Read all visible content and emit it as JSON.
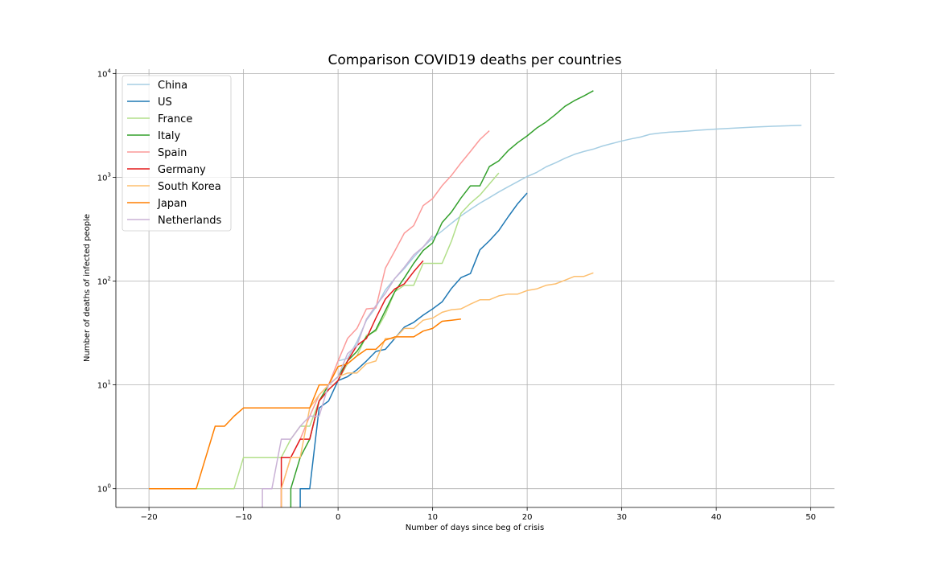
{
  "chart_data": {
    "type": "line",
    "title": "Comparison COVID19 deaths per countries",
    "xlabel": "Number of days since beg of crisis",
    "ylabel": "Number of deaths of infected people",
    "xlim": [
      -23.5,
      52.5
    ],
    "ylim": [
      0.66,
      11000
    ],
    "yscale": "log",
    "grid": true,
    "legend_position": "upper-left",
    "x_ticks": [
      -20,
      -10,
      0,
      10,
      20,
      30,
      40,
      50
    ],
    "x_tick_labels": [
      "−20",
      "−10",
      "0",
      "10",
      "20",
      "30",
      "40",
      "50"
    ],
    "y_ticks": [
      1,
      10,
      100,
      1000,
      10000
    ],
    "y_tick_labels": [
      {
        "base": "10",
        "exp": "0"
      },
      {
        "base": "10",
        "exp": "1"
      },
      {
        "base": "10",
        "exp": "2"
      },
      {
        "base": "10",
        "exp": "3"
      },
      {
        "base": "10",
        "exp": "4"
      }
    ],
    "series": [
      {
        "name": "China",
        "color": "#a6cee3",
        "points": [
          [
            0,
            17
          ],
          [
            1,
            18
          ],
          [
            2,
            26
          ],
          [
            3,
            42
          ],
          [
            4,
            56
          ],
          [
            5,
            82
          ],
          [
            6,
            106
          ],
          [
            7,
            132
          ],
          [
            8,
            170
          ],
          [
            9,
            213
          ],
          [
            10,
            259
          ],
          [
            11,
            304
          ],
          [
            12,
            361
          ],
          [
            13,
            425
          ],
          [
            14,
            490
          ],
          [
            15,
            563
          ],
          [
            16,
            636
          ],
          [
            17,
            722
          ],
          [
            18,
            811
          ],
          [
            19,
            908
          ],
          [
            20,
            1016
          ],
          [
            21,
            1113
          ],
          [
            22,
            1259
          ],
          [
            23,
            1380
          ],
          [
            24,
            1523
          ],
          [
            25,
            1665
          ],
          [
            26,
            1770
          ],
          [
            27,
            1868
          ],
          [
            28,
            2004
          ],
          [
            29,
            2118
          ],
          [
            30,
            2236
          ],
          [
            31,
            2345
          ],
          [
            32,
            2442
          ],
          [
            33,
            2592
          ],
          [
            34,
            2663
          ],
          [
            35,
            2715
          ],
          [
            36,
            2744
          ],
          [
            37,
            2788
          ],
          [
            38,
            2835
          ],
          [
            39,
            2870
          ],
          [
            40,
            2912
          ],
          [
            41,
            2946
          ],
          [
            42,
            2981
          ],
          [
            43,
            3013
          ],
          [
            44,
            3045
          ],
          [
            45,
            3073
          ],
          [
            46,
            3099
          ],
          [
            47,
            3123
          ],
          [
            48,
            3140
          ],
          [
            49,
            3162
          ]
        ]
      },
      {
        "name": "US",
        "color": "#1f78b4",
        "points": [
          [
            -4,
            0.5
          ],
          [
            -4,
            1
          ],
          [
            -3,
            1
          ],
          [
            -2,
            6
          ],
          [
            -1,
            7
          ],
          [
            0,
            11
          ],
          [
            1,
            12
          ],
          [
            2,
            14
          ],
          [
            3,
            17
          ],
          [
            4,
            21
          ],
          [
            5,
            22
          ],
          [
            6,
            28
          ],
          [
            7,
            36
          ],
          [
            8,
            40
          ],
          [
            9,
            47
          ],
          [
            10,
            54
          ],
          [
            11,
            63
          ],
          [
            12,
            85
          ],
          [
            13,
            108
          ],
          [
            14,
            118
          ],
          [
            15,
            200
          ],
          [
            16,
            244
          ],
          [
            17,
            307
          ],
          [
            18,
            417
          ],
          [
            19,
            557
          ],
          [
            20,
            706
          ]
        ]
      },
      {
        "name": "France",
        "color": "#b2df8a",
        "points": [
          [
            -15,
            1
          ],
          [
            -11,
            1
          ],
          [
            -10,
            2
          ],
          [
            -6,
            2
          ],
          [
            -5,
            3
          ],
          [
            -4,
            4
          ],
          [
            -3,
            4
          ],
          [
            -2,
            7
          ],
          [
            -1,
            9
          ],
          [
            0,
            11
          ],
          [
            1,
            16
          ],
          [
            2,
            19
          ],
          [
            3,
            30
          ],
          [
            4,
            33
          ],
          [
            5,
            48
          ],
          [
            6,
            79
          ],
          [
            7,
            91
          ],
          [
            8,
            91
          ],
          [
            9,
            148
          ],
          [
            10,
            148
          ],
          [
            11,
            148
          ],
          [
            12,
            243
          ],
          [
            13,
            450
          ],
          [
            14,
            562
          ],
          [
            15,
            674
          ],
          [
            16,
            860
          ],
          [
            17,
            1100
          ]
        ]
      },
      {
        "name": "Italy",
        "color": "#33a02c",
        "points": [
          [
            -5,
            0.5
          ],
          [
            -5,
            1
          ],
          [
            -4,
            2
          ],
          [
            -3,
            3
          ],
          [
            -2,
            7
          ],
          [
            -1,
            10
          ],
          [
            0,
            12
          ],
          [
            1,
            17
          ],
          [
            2,
            21
          ],
          [
            3,
            29
          ],
          [
            4,
            34
          ],
          [
            5,
            52
          ],
          [
            6,
            79
          ],
          [
            7,
            107
          ],
          [
            8,
            148
          ],
          [
            9,
            197
          ],
          [
            10,
            233
          ],
          [
            11,
            366
          ],
          [
            12,
            463
          ],
          [
            13,
            631
          ],
          [
            14,
            827
          ],
          [
            15,
            827
          ],
          [
            16,
            1266
          ],
          [
            17,
            1441
          ],
          [
            18,
            1809
          ],
          [
            19,
            2158
          ],
          [
            20,
            2503
          ],
          [
            21,
            2978
          ],
          [
            22,
            3405
          ],
          [
            23,
            4032
          ],
          [
            24,
            4825
          ],
          [
            25,
            5476
          ],
          [
            26,
            6077
          ],
          [
            27,
            6820
          ]
        ]
      },
      {
        "name": "Spain",
        "color": "#fb9a99",
        "points": [
          [
            -6,
            0.5
          ],
          [
            -6,
            1
          ],
          [
            -5,
            2
          ],
          [
            -4,
            3
          ],
          [
            -3,
            5
          ],
          [
            -2,
            8
          ],
          [
            -1,
            10
          ],
          [
            0,
            17
          ],
          [
            1,
            28
          ],
          [
            2,
            35
          ],
          [
            3,
            54
          ],
          [
            4,
            55
          ],
          [
            5,
            133
          ],
          [
            6,
            195
          ],
          [
            7,
            289
          ],
          [
            8,
            342
          ],
          [
            9,
            533
          ],
          [
            10,
            623
          ],
          [
            11,
            830
          ],
          [
            12,
            1043
          ],
          [
            13,
            1375
          ],
          [
            14,
            1772
          ],
          [
            15,
            2311
          ],
          [
            16,
            2808
          ]
        ]
      },
      {
        "name": "Germany",
        "color": "#e31a1c",
        "points": [
          [
            -6,
            0.5
          ],
          [
            -6,
            2
          ],
          [
            -5,
            2
          ],
          [
            -4,
            3
          ],
          [
            -3,
            3
          ],
          [
            -2,
            7
          ],
          [
            -1,
            9
          ],
          [
            0,
            11
          ],
          [
            1,
            17
          ],
          [
            2,
            24
          ],
          [
            3,
            28
          ],
          [
            4,
            44
          ],
          [
            5,
            67
          ],
          [
            6,
            84
          ],
          [
            7,
            94
          ],
          [
            8,
            123
          ],
          [
            9,
            157
          ]
        ]
      },
      {
        "name": "South Korea",
        "color": "#fdbf6f",
        "points": [
          [
            -6,
            0.5
          ],
          [
            -6,
            1
          ],
          [
            -5,
            2
          ],
          [
            -4,
            2
          ],
          [
            -3,
            6
          ],
          [
            -2,
            8
          ],
          [
            -1,
            10
          ],
          [
            0,
            12
          ],
          [
            1,
            13
          ],
          [
            2,
            13
          ],
          [
            3,
            16
          ],
          [
            4,
            17
          ],
          [
            5,
            28
          ],
          [
            6,
            28
          ],
          [
            7,
            35
          ],
          [
            8,
            35
          ],
          [
            9,
            42
          ],
          [
            10,
            44
          ],
          [
            11,
            50
          ],
          [
            12,
            53
          ],
          [
            13,
            54
          ],
          [
            14,
            60
          ],
          [
            15,
            66
          ],
          [
            16,
            66
          ],
          [
            17,
            72
          ],
          [
            18,
            75
          ],
          [
            19,
            75
          ],
          [
            20,
            81
          ],
          [
            21,
            84
          ],
          [
            22,
            91
          ],
          [
            23,
            94
          ],
          [
            24,
            102
          ],
          [
            25,
            111
          ],
          [
            26,
            111
          ],
          [
            27,
            120
          ]
        ]
      },
      {
        "name": "Japan",
        "color": "#ff7f00",
        "points": [
          [
            -20,
            1
          ],
          [
            -15,
            1
          ],
          [
            -13,
            4
          ],
          [
            -12,
            4
          ],
          [
            -11,
            5
          ],
          [
            -10,
            6
          ],
          [
            -3,
            6
          ],
          [
            -2,
            10
          ],
          [
            -1,
            10
          ],
          [
            0,
            15
          ],
          [
            1,
            16
          ],
          [
            2,
            19
          ],
          [
            3,
            22
          ],
          [
            4,
            22
          ],
          [
            5,
            27
          ],
          [
            6,
            29
          ],
          [
            7,
            29
          ],
          [
            8,
            29
          ],
          [
            9,
            33
          ],
          [
            10,
            35
          ],
          [
            11,
            41
          ],
          [
            12,
            42
          ],
          [
            13,
            43
          ]
        ]
      },
      {
        "name": "Netherlands",
        "color": "#cab2d6",
        "points": [
          [
            -8,
            0.5
          ],
          [
            -8,
            1
          ],
          [
            -7,
            1
          ],
          [
            -6,
            3
          ],
          [
            -5,
            3
          ],
          [
            -4,
            4
          ],
          [
            -3,
            5
          ],
          [
            -2,
            5
          ],
          [
            -1,
            10
          ],
          [
            0,
            12
          ],
          [
            1,
            20
          ],
          [
            2,
            24
          ],
          [
            3,
            43
          ],
          [
            4,
            58
          ],
          [
            5,
            76
          ],
          [
            6,
            106
          ],
          [
            7,
            136
          ],
          [
            8,
            179
          ],
          [
            9,
            213
          ],
          [
            10,
            276
          ]
        ]
      }
    ]
  }
}
